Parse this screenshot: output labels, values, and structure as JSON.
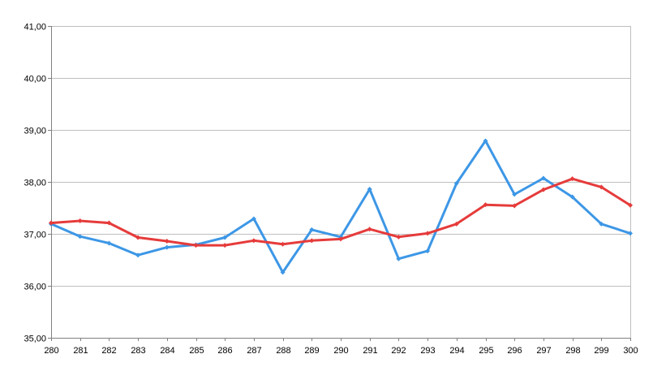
{
  "chart_data": {
    "type": "line",
    "x": [
      280,
      281,
      282,
      283,
      284,
      285,
      286,
      287,
      288,
      289,
      290,
      291,
      292,
      293,
      294,
      295,
      296,
      297,
      298,
      299,
      300
    ],
    "x_tick_labels": [
      "280",
      "281",
      "282",
      "283",
      "284",
      "285",
      "286",
      "287",
      "288",
      "289",
      "290",
      "291",
      "292",
      "293",
      "294",
      "295",
      "296",
      "297",
      "298",
      "299",
      "300"
    ],
    "y_tick_labels": [
      "35,00",
      "36,00",
      "37,00",
      "38,00",
      "39,00",
      "40,00",
      "41,00"
    ],
    "ylim": [
      35,
      41
    ],
    "y_ticks": [
      35,
      36,
      37,
      38,
      39,
      40,
      41
    ],
    "grid": true,
    "legend": "none",
    "title": "",
    "xlabel": "",
    "ylabel": "",
    "series": [
      {
        "color": "#3d97e6",
        "values": [
          37.19,
          36.95,
          36.82,
          36.59,
          36.74,
          36.79,
          36.93,
          37.29,
          36.26,
          37.08,
          36.94,
          37.86,
          36.52,
          36.67,
          37.97,
          38.79,
          37.76,
          38.07,
          37.71,
          37.19,
          37.01
        ]
      },
      {
        "color": "#e63b3b",
        "values": [
          37.21,
          37.25,
          37.21,
          36.93,
          36.86,
          36.78,
          36.78,
          36.87,
          36.8,
          36.87,
          36.9,
          37.09,
          36.94,
          37.01,
          37.19,
          37.56,
          37.54,
          37.85,
          38.06,
          37.9,
          37.55
        ]
      }
    ]
  }
}
